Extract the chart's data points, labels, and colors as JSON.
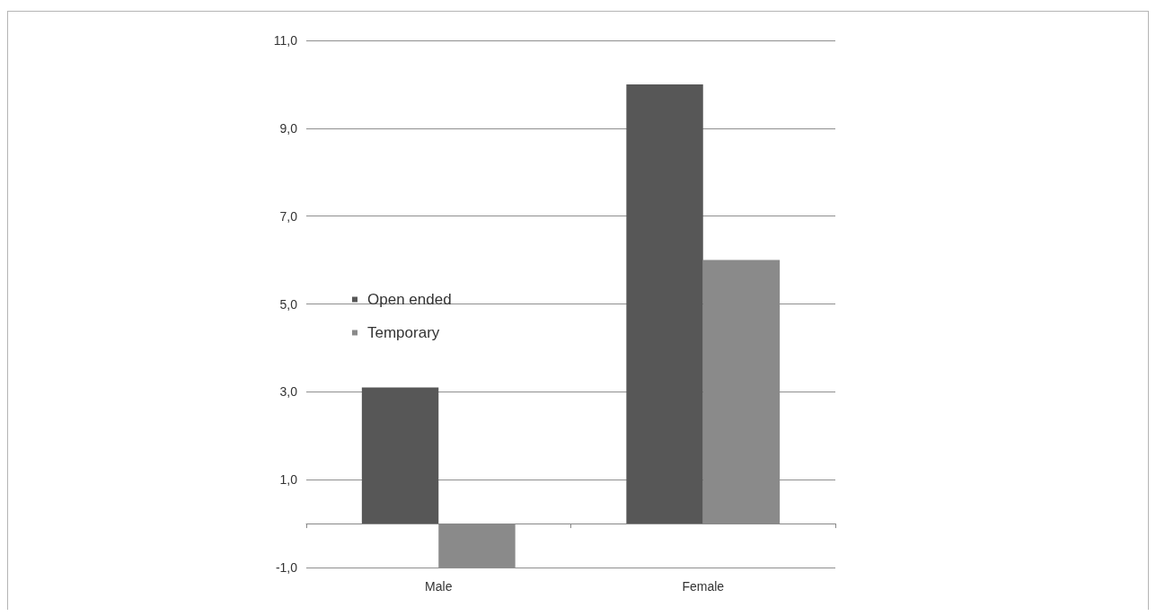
{
  "chart_data": {
    "type": "bar",
    "categories": [
      "Male",
      "Female"
    ],
    "series": [
      {
        "name": "Open ended",
        "color": "#575757",
        "values": [
          3.1,
          10.0
        ]
      },
      {
        "name": "Temporary",
        "color": "#8a8a8a",
        "values": [
          -1.0,
          6.0
        ]
      }
    ],
    "ylim": [
      -1,
      11
    ],
    "yticks": [
      {
        "value": -1,
        "label": "-1,0"
      },
      {
        "value": 1,
        "label": "1,0"
      },
      {
        "value": 3,
        "label": "3,0"
      },
      {
        "value": 5,
        "label": "5,0"
      },
      {
        "value": 7,
        "label": "7,0"
      },
      {
        "value": 9,
        "label": "9,0"
      },
      {
        "value": 11,
        "label": "11,0"
      }
    ],
    "grid": "y",
    "legend": "left"
  }
}
